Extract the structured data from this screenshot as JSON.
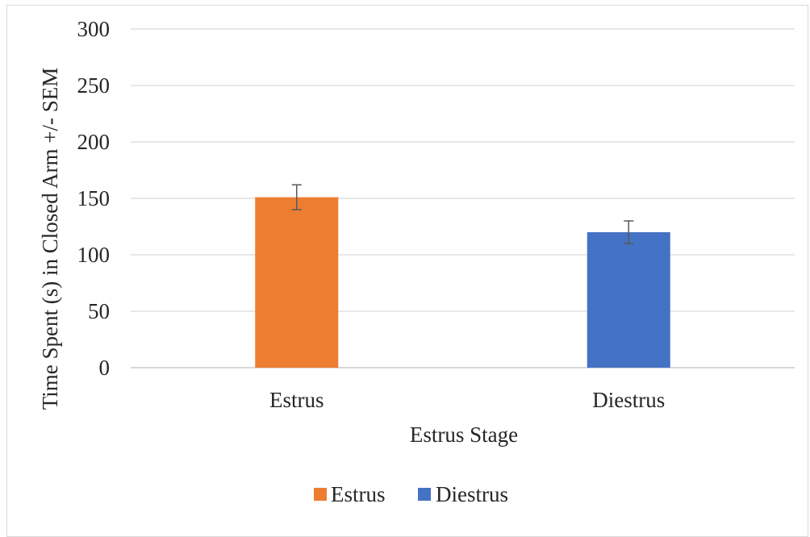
{
  "chart_data": {
    "type": "bar",
    "title": "",
    "xlabel": "Estrus Stage",
    "ylabel": "Time Spent (s) in Closed Arm +/- SEM",
    "categories": [
      "Estrus",
      "Diestrus"
    ],
    "series": [
      {
        "name": "Estrus",
        "color": "#ED7D31",
        "values": [
          151,
          null
        ],
        "error": [
          11,
          null
        ]
      },
      {
        "name": "Diestrus",
        "color": "#4472C4",
        "values": [
          null,
          120
        ],
        "error": [
          null,
          10
        ]
      }
    ],
    "ylim": [
      0,
      300
    ],
    "yticks": [
      "0",
      "50",
      "100",
      "150",
      "200",
      "250",
      "300"
    ],
    "grid": true,
    "legend_position": "bottom"
  }
}
